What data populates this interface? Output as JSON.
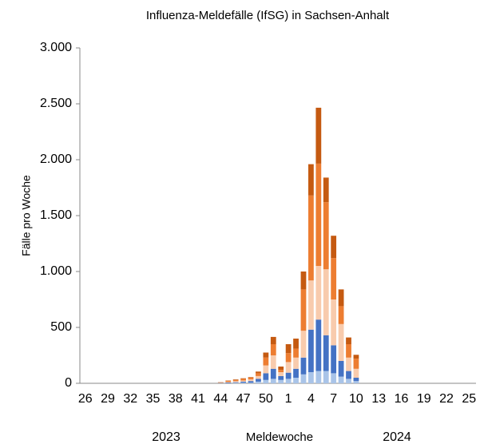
{
  "chart_data": {
    "type": "stacked_bar",
    "title": "Influenza-Meldefälle (IfSG) in Sachsen-Anhalt",
    "y_label": "Fälle pro Woche",
    "x_label": "Meldewoche",
    "x_group_labels": [
      "2023",
      "2024"
    ],
    "categories": [
      "26",
      null,
      null,
      "29",
      null,
      null,
      "32",
      null,
      null,
      "35",
      null,
      null,
      "38",
      null,
      null,
      "41",
      null,
      null,
      "44",
      null,
      null,
      "47",
      null,
      null,
      "50",
      null,
      null,
      "1",
      null,
      null,
      "4",
      null,
      null,
      "7",
      null,
      null,
      "10",
      null,
      null,
      "13",
      null,
      null,
      "16",
      null,
      null,
      "19",
      null,
      null,
      "22",
      null,
      null,
      "25"
    ],
    "series": [
      {
        "color": "#a9c4e8",
        "values": [
          0,
          0,
          0,
          0,
          0,
          0,
          0,
          0,
          0,
          0,
          0,
          0,
          0,
          0,
          0,
          0,
          0,
          0,
          1,
          2,
          5,
          5,
          5,
          15,
          30,
          40,
          30,
          40,
          50,
          80,
          100,
          110,
          110,
          90,
          60,
          40,
          20,
          0,
          0,
          0,
          0,
          0,
          0,
          0,
          0,
          0,
          0,
          0,
          0,
          0,
          0,
          0
        ]
      },
      {
        "color": "#4472c4",
        "values": [
          0,
          0,
          0,
          0,
          0,
          0,
          0,
          0,
          0,
          0,
          0,
          0,
          0,
          0,
          0,
          0,
          0,
          0,
          2,
          5,
          5,
          10,
          15,
          25,
          60,
          90,
          35,
          55,
          80,
          150,
          380,
          460,
          320,
          250,
          140,
          70,
          30,
          0,
          0,
          0,
          0,
          0,
          0,
          0,
          0,
          0,
          0,
          0,
          0,
          0,
          0,
          0
        ]
      },
      {
        "color": "#f8cbad",
        "values": [
          0,
          0,
          0,
          0,
          0,
          0,
          0,
          0,
          0,
          0,
          0,
          0,
          0,
          0,
          0,
          0,
          0,
          0,
          2,
          5,
          10,
          10,
          15,
          25,
          70,
          120,
          35,
          95,
          100,
          240,
          440,
          480,
          590,
          410,
          330,
          120,
          80,
          0,
          0,
          0,
          0,
          0,
          0,
          0,
          0,
          0,
          0,
          0,
          0,
          0,
          0,
          0
        ]
      },
      {
        "color": "#ed7d31",
        "values": [
          0,
          0,
          0,
          0,
          0,
          0,
          0,
          0,
          0,
          0,
          0,
          0,
          0,
          0,
          0,
          0,
          0,
          0,
          3,
          10,
          10,
          15,
          15,
          25,
          70,
          100,
          20,
          80,
          80,
          370,
          760,
          915,
          600,
          370,
          160,
          120,
          90,
          0,
          0,
          0,
          0,
          0,
          0,
          0,
          0,
          0,
          0,
          0,
          0,
          0,
          0,
          0
        ]
      },
      {
        "color": "#c55a11",
        "values": [
          0,
          0,
          0,
          0,
          0,
          0,
          0,
          0,
          0,
          0,
          0,
          0,
          0,
          0,
          0,
          0,
          0,
          0,
          2,
          3,
          5,
          5,
          5,
          15,
          45,
          65,
          30,
          80,
          90,
          160,
          280,
          500,
          220,
          200,
          150,
          60,
          35,
          0,
          0,
          0,
          0,
          0,
          0,
          0,
          0,
          0,
          0,
          0,
          0,
          0,
          0,
          0
        ]
      }
    ],
    "ylim": [
      0,
      3000
    ],
    "yticks": [
      0,
      500,
      {
        "value": 1000,
        "label": "1.000"
      },
      {
        "value": 1500,
        "label": "1.500"
      },
      {
        "value": 2000,
        "label": "2.000"
      },
      {
        "value": 2500,
        "label": "2.500"
      },
      {
        "value": 3000,
        "label": "3.000"
      }
    ],
    "grid": false
  }
}
